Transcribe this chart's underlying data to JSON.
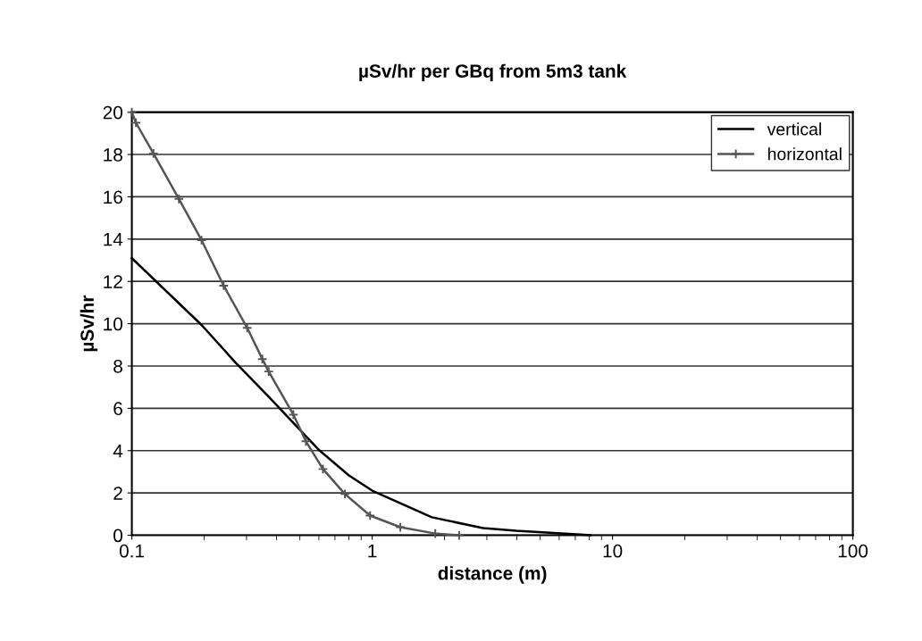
{
  "chart_data": {
    "type": "line",
    "title": "µSv/hr per GBq from 5m3 tank",
    "xlabel": "distance (m)",
    "ylabel": "µSv/hr",
    "log": "x",
    "xlim": [
      0.1,
      100
    ],
    "xticks": [
      0.1,
      1,
      10,
      100
    ],
    "ylim": [
      0,
      20
    ],
    "yticks": [
      0,
      2,
      4,
      6,
      8,
      10,
      12,
      14,
      16,
      18,
      20
    ],
    "grid": "y",
    "legend": "top right",
    "series": [
      {
        "name": "vertical",
        "color": "#000000",
        "marker": "none",
        "x": [
          0.1,
          0.195,
          0.27,
          0.371,
          0.602,
          0.8,
          1.0,
          1.77,
          2.89,
          3.97,
          8.1
        ],
        "values": [
          13.1,
          9.94,
          8.16,
          6.55,
          4.02,
          2.83,
          2.11,
          0.85,
          0.34,
          0.21,
          0
        ]
      },
      {
        "name": "horizontal",
        "color": "#555555",
        "marker": "cross",
        "x": [
          0.1,
          0.104,
          0.123,
          0.157,
          0.195,
          0.241,
          0.302,
          0.349,
          0.371,
          0.47,
          0.53,
          0.624,
          0.77,
          0.98,
          1.31,
          1.83,
          2.3
        ],
        "values": [
          20,
          19.5,
          18.05,
          15.9,
          13.95,
          11.8,
          9.8,
          8.33,
          7.74,
          5.7,
          4.44,
          3.13,
          1.95,
          0.93,
          0.38,
          0.08,
          0
        ]
      }
    ]
  }
}
